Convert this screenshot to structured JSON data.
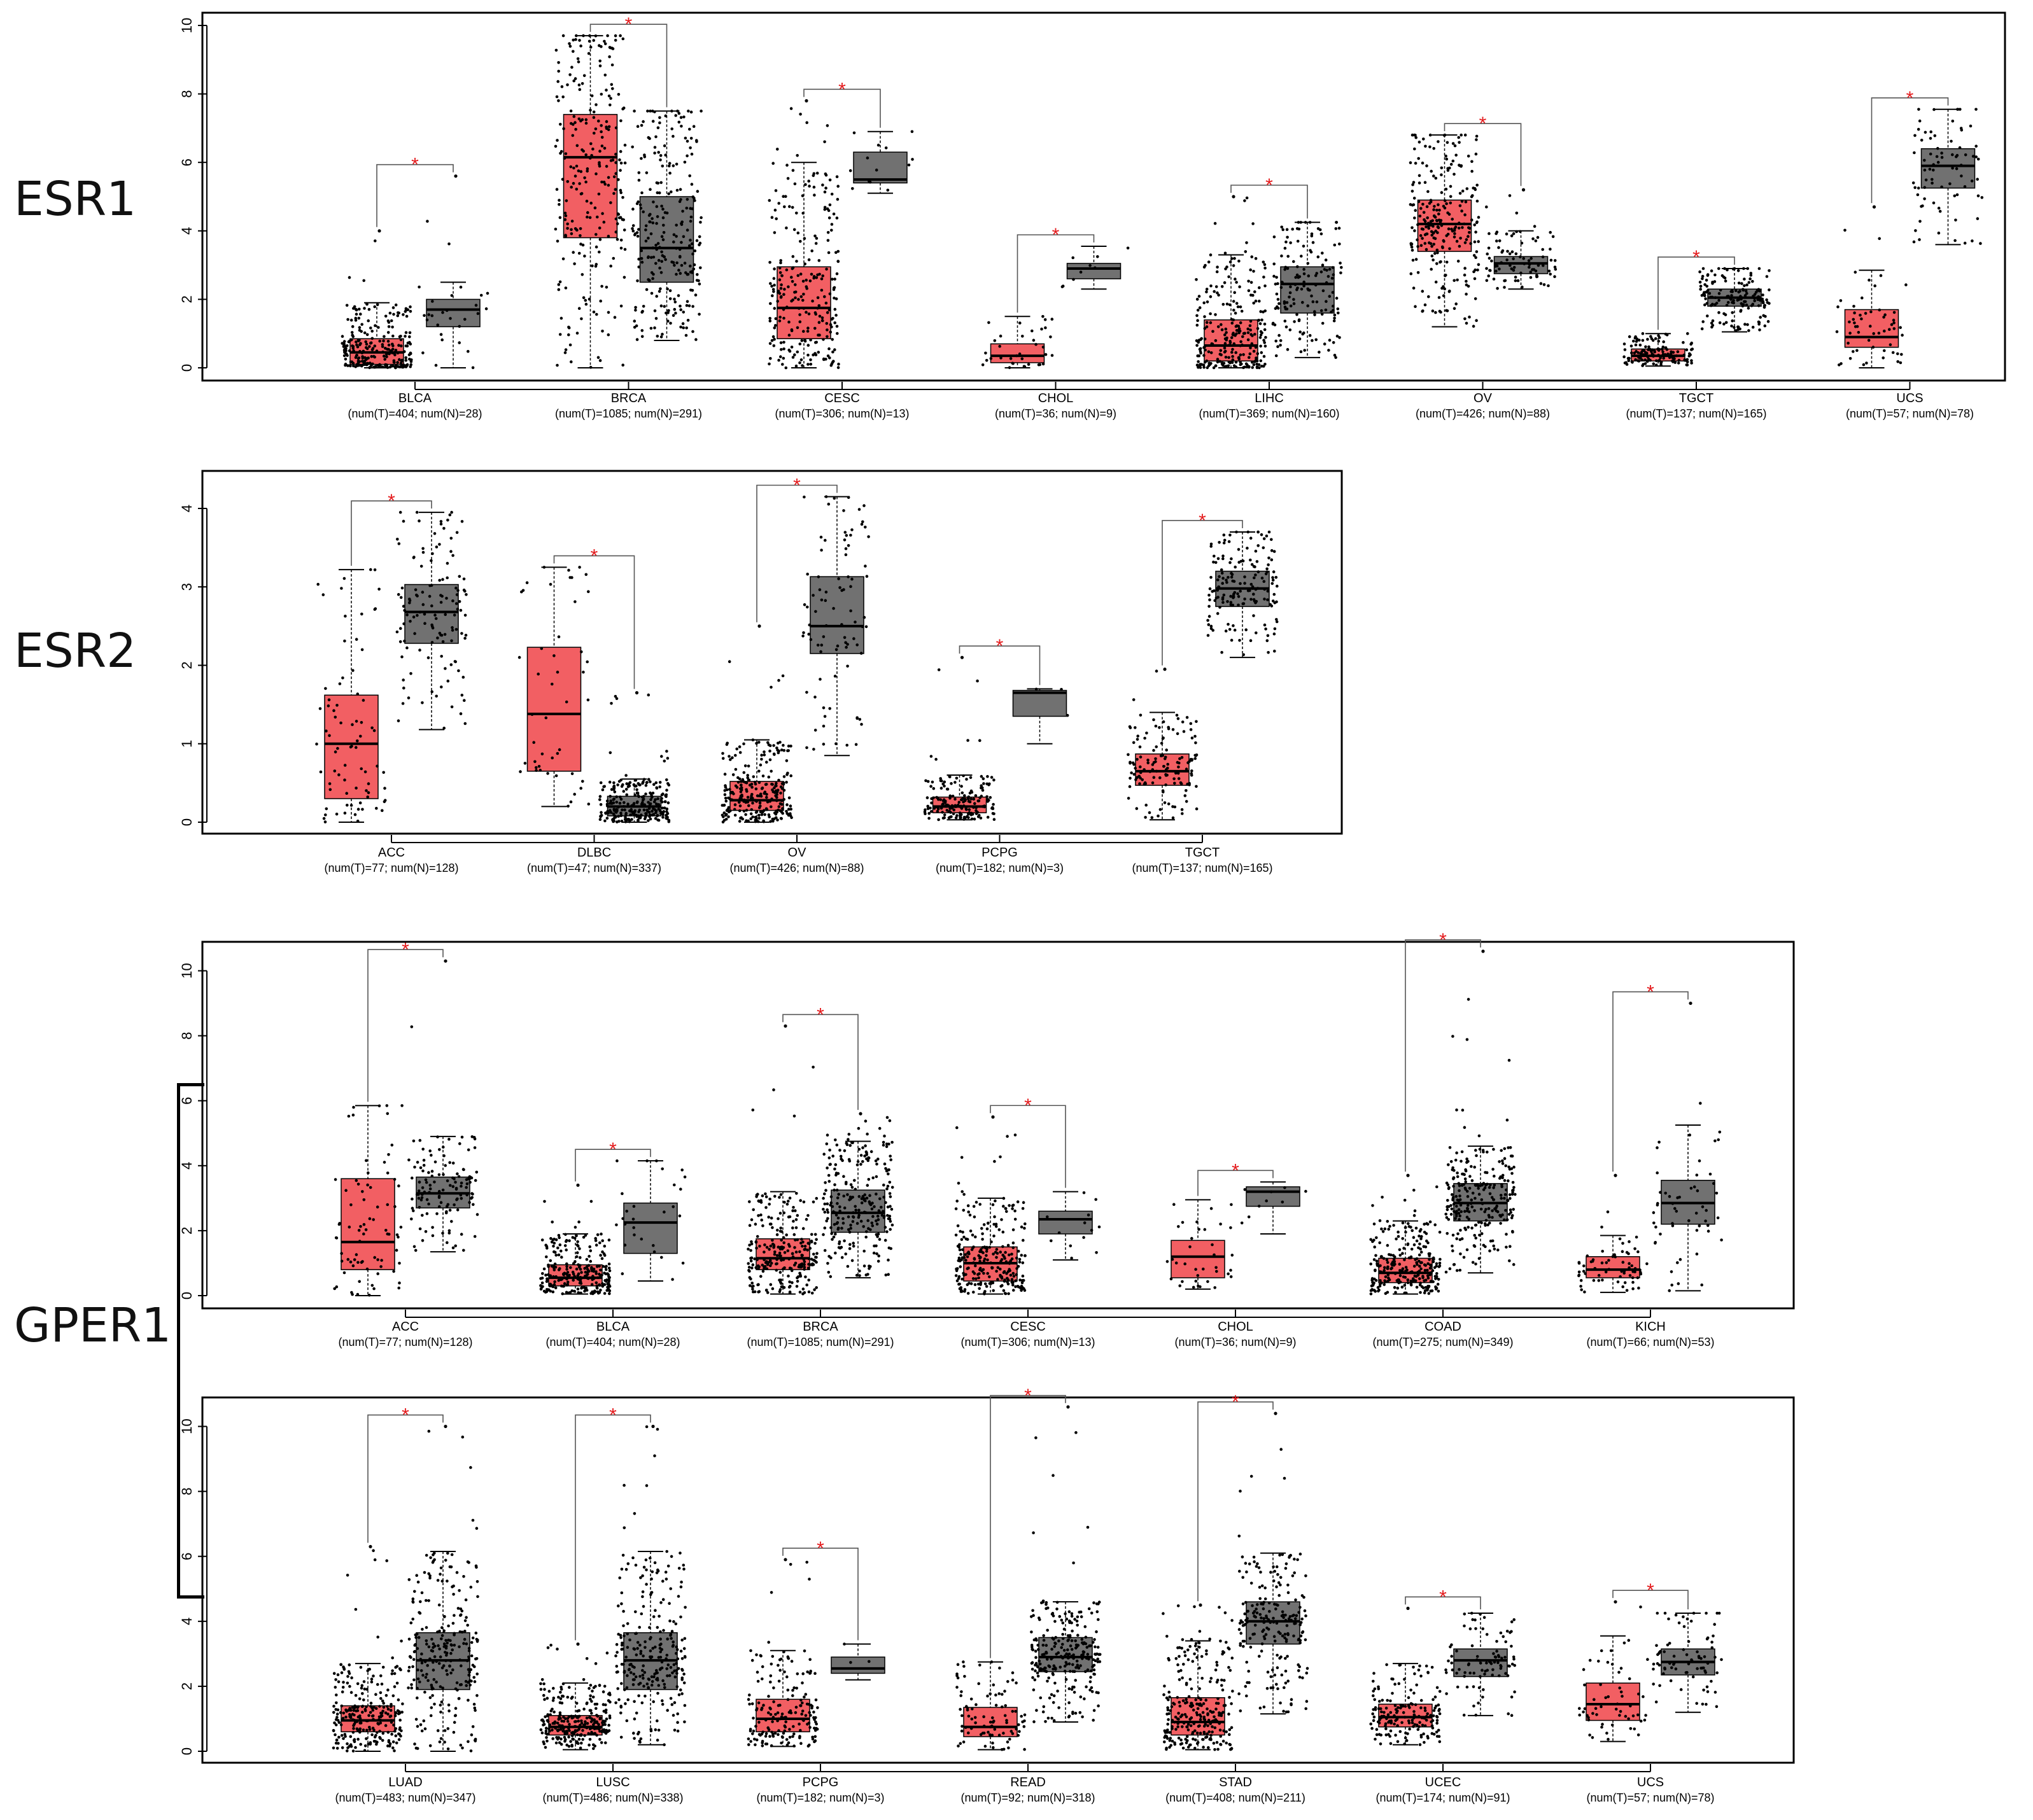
{
  "row_labels": {
    "esr1": "ESR1",
    "esr2": "ESR2",
    "gper1": "GPER1"
  },
  "colors": {
    "tumor": "#f25f63",
    "normal": "#717171",
    "significance": "#e41a1c",
    "points": "#000000"
  },
  "chart_data": [
    {
      "type": "box",
      "gene": "ESR1",
      "ylim": [
        0,
        10
      ],
      "yticks": [
        0,
        2,
        4,
        6,
        8,
        10
      ],
      "yticklabels": [
        "0",
        "2",
        "4",
        "6",
        "8",
        "10"
      ],
      "categories": [
        "BLCA",
        "BRCA",
        "CESC",
        "CHOL",
        "LIHC",
        "OV",
        "TGCT",
        "UCS"
      ],
      "sublabels": [
        "(num(T)=404; num(N)=28)",
        "(num(T)=1085; num(N)=291)",
        "(num(T)=306; num(N)=13)",
        "(num(T)=36; num(N)=9)",
        "(num(T)=369; num(N)=160)",
        "(num(T)=426; num(N)=88)",
        "(num(T)=137; num(N)=165)",
        "(num(T)=57; num(N)=78)"
      ],
      "sig_marks": [
        "*",
        "*",
        "*",
        "*",
        "*",
        "*",
        "*",
        "*"
      ],
      "tumor": [
        {
          "q1": 0.1,
          "med": 0.45,
          "q3": 0.85,
          "wlo": 0,
          "whi": 1.9,
          "max": 4.0,
          "n": 404
        },
        {
          "q1": 3.8,
          "med": 6.15,
          "q3": 7.4,
          "wlo": 0,
          "whi": 9.7,
          "max": 9.7,
          "n": 1085
        },
        {
          "q1": 0.85,
          "med": 1.75,
          "q3": 2.95,
          "wlo": 0,
          "whi": 6.0,
          "max": 7.8,
          "n": 306
        },
        {
          "q1": 0.15,
          "med": 0.35,
          "q3": 0.7,
          "wlo": 0,
          "whi": 1.5,
          "max": 1.5,
          "n": 36
        },
        {
          "q1": 0.2,
          "med": 0.65,
          "q3": 1.4,
          "wlo": 0,
          "whi": 3.3,
          "max": 5.0,
          "n": 369
        },
        {
          "q1": 3.4,
          "med": 4.2,
          "q3": 4.9,
          "wlo": 1.2,
          "whi": 6.8,
          "max": 6.8,
          "n": 426
        },
        {
          "q1": 0.2,
          "med": 0.35,
          "q3": 0.55,
          "wlo": 0.05,
          "whi": 1.0,
          "max": 1.0,
          "n": 137
        },
        {
          "q1": 0.6,
          "med": 0.9,
          "q3": 1.7,
          "wlo": 0,
          "whi": 2.85,
          "max": 4.7,
          "n": 57
        }
      ],
      "normal": [
        {
          "q1": 1.2,
          "med": 1.7,
          "q3": 2.0,
          "wlo": 0,
          "whi": 2.5,
          "max": 5.6,
          "n": 28
        },
        {
          "q1": 2.5,
          "med": 3.5,
          "q3": 5.0,
          "wlo": 0.8,
          "whi": 7.5,
          "max": 7.5,
          "n": 291
        },
        {
          "q1": 5.4,
          "med": 5.5,
          "q3": 6.3,
          "wlo": 5.1,
          "whi": 6.9,
          "max": 6.9,
          "n": 13
        },
        {
          "q1": 2.6,
          "med": 2.9,
          "q3": 3.05,
          "wlo": 2.3,
          "whi": 3.55,
          "max": 3.55,
          "n": 9
        },
        {
          "q1": 1.6,
          "med": 2.45,
          "q3": 2.95,
          "wlo": 0.3,
          "whi": 4.25,
          "max": 4.25,
          "n": 160
        },
        {
          "q1": 2.75,
          "med": 3.05,
          "q3": 3.25,
          "wlo": 2.3,
          "whi": 4.0,
          "max": 5.2,
          "n": 88
        },
        {
          "q1": 1.8,
          "med": 2.05,
          "q3": 2.3,
          "wlo": 1.05,
          "whi": 2.9,
          "max": 2.9,
          "n": 165
        },
        {
          "q1": 5.25,
          "med": 5.9,
          "q3": 6.4,
          "wlo": 3.6,
          "whi": 7.55,
          "max": 7.55,
          "n": 78
        }
      ]
    },
    {
      "type": "box",
      "gene": "ESR2",
      "ylim": [
        0,
        4.3
      ],
      "yticks": [
        0,
        1,
        2,
        3,
        4
      ],
      "yticklabels": [
        "0",
        "1",
        "2",
        "3",
        "4"
      ],
      "categories": [
        "ACC",
        "DLBC",
        "OV",
        "PCPG",
        "TGCT"
      ],
      "sublabels": [
        "(num(T)=77; num(N)=128)",
        "(num(T)=47; num(N)=337)",
        "(num(T)=426; num(N)=88)",
        "(num(T)=182; num(N)=3)",
        "(num(T)=137; num(N)=165)"
      ],
      "sig_marks": [
        "*",
        "*",
        "*",
        "*",
        "*"
      ],
      "tumor": [
        {
          "q1": 0.3,
          "med": 1.0,
          "q3": 1.62,
          "wlo": 0,
          "whi": 3.22,
          "max": 3.22,
          "n": 77
        },
        {
          "q1": 0.65,
          "med": 1.38,
          "q3": 2.23,
          "wlo": 0.2,
          "whi": 3.25,
          "max": 3.25,
          "n": 47
        },
        {
          "q1": 0.15,
          "med": 0.28,
          "q3": 0.52,
          "wlo": 0,
          "whi": 1.05,
          "max": 2.5,
          "n": 426
        },
        {
          "q1": 0.12,
          "med": 0.2,
          "q3": 0.32,
          "wlo": 0.03,
          "whi": 0.6,
          "max": 2.1,
          "n": 182
        },
        {
          "q1": 0.47,
          "med": 0.65,
          "q3": 0.87,
          "wlo": 0.03,
          "whi": 1.4,
          "max": 1.95,
          "n": 137
        }
      ],
      "normal": [
        {
          "q1": 2.28,
          "med": 2.68,
          "q3": 3.03,
          "wlo": 1.18,
          "whi": 3.95,
          "max": 3.95,
          "n": 128
        },
        {
          "q1": 0.08,
          "med": 0.2,
          "q3": 0.33,
          "wlo": 0,
          "whi": 0.55,
          "max": 1.65,
          "n": 337
        },
        {
          "q1": 2.15,
          "med": 2.5,
          "q3": 3.13,
          "wlo": 0.85,
          "whi": 4.15,
          "max": 4.15,
          "n": 88
        },
        {
          "q1": 1.35,
          "med": 1.65,
          "q3": 1.68,
          "wlo": 1.0,
          "whi": 1.7,
          "max": 1.7,
          "n": 3
        },
        {
          "q1": 2.75,
          "med": 2.98,
          "q3": 3.2,
          "wlo": 2.1,
          "whi": 3.7,
          "max": 3.7,
          "n": 165
        }
      ]
    },
    {
      "type": "box",
      "gene": "GPER1",
      "ylim": [
        0,
        10.5
      ],
      "yticks": [
        0,
        2,
        4,
        6,
        8,
        10
      ],
      "yticklabels": [
        "0",
        "2",
        "4",
        "6",
        "8",
        "10"
      ],
      "categories": [
        "ACC",
        "BLCA",
        "BRCA",
        "CESC",
        "CHOL",
        "COAD",
        "KICH"
      ],
      "sublabels": [
        "(num(T)=77; num(N)=128)",
        "(num(T)=404; num(N)=28)",
        "(num(T)=1085; num(N)=291)",
        "(num(T)=306; num(N)=13)",
        "(num(T)=36; num(N)=9)",
        "(num(T)=275; num(N)=349)",
        "(num(T)=66; num(N)=53)"
      ],
      "sig_marks": [
        "*",
        "*",
        "*",
        "*",
        "*",
        "*",
        "*"
      ],
      "tumor": [
        {
          "q1": 0.8,
          "med": 1.65,
          "q3": 3.6,
          "wlo": 0,
          "whi": 5.85,
          "max": 5.85,
          "n": 77
        },
        {
          "q1": 0.3,
          "med": 0.55,
          "q3": 0.95,
          "wlo": 0.05,
          "whi": 1.9,
          "max": 3.4,
          "n": 404
        },
        {
          "q1": 0.8,
          "med": 1.15,
          "q3": 1.75,
          "wlo": 0.05,
          "whi": 3.2,
          "max": 8.3,
          "n": 1085
        },
        {
          "q1": 0.45,
          "med": 1.0,
          "q3": 1.5,
          "wlo": 0.05,
          "whi": 3.0,
          "max": 5.5,
          "n": 306
        },
        {
          "q1": 0.55,
          "med": 1.2,
          "q3": 1.7,
          "wlo": 0.2,
          "whi": 2.95,
          "max": 2.95,
          "n": 36
        },
        {
          "q1": 0.4,
          "med": 0.7,
          "q3": 1.15,
          "wlo": 0.05,
          "whi": 2.3,
          "max": 3.7,
          "n": 275
        },
        {
          "q1": 0.55,
          "med": 0.8,
          "q3": 1.2,
          "wlo": 0.1,
          "whi": 1.85,
          "max": 3.7,
          "n": 66
        }
      ],
      "normal": [
        {
          "q1": 2.7,
          "med": 3.15,
          "q3": 3.65,
          "wlo": 1.35,
          "whi": 4.9,
          "max": 10.3,
          "n": 128
        },
        {
          "q1": 1.3,
          "med": 2.25,
          "q3": 2.85,
          "wlo": 0.45,
          "whi": 4.15,
          "max": 4.15,
          "n": 28
        },
        {
          "q1": 1.95,
          "med": 2.55,
          "q3": 3.25,
          "wlo": 0.55,
          "whi": 4.75,
          "max": 5.6,
          "n": 291
        },
        {
          "q1": 1.9,
          "med": 2.35,
          "q3": 2.6,
          "wlo": 1.1,
          "whi": 3.2,
          "max": 3.2,
          "n": 13
        },
        {
          "q1": 2.75,
          "med": 3.2,
          "q3": 3.35,
          "wlo": 1.9,
          "whi": 3.5,
          "max": 3.5,
          "n": 9
        },
        {
          "q1": 2.3,
          "med": 2.85,
          "q3": 3.45,
          "wlo": 0.7,
          "whi": 4.6,
          "max": 10.6,
          "n": 349
        },
        {
          "q1": 2.2,
          "med": 2.85,
          "q3": 3.55,
          "wlo": 0.15,
          "whi": 5.25,
          "max": 9.0,
          "n": 53
        }
      ]
    },
    {
      "type": "box",
      "gene": "GPER1",
      "ylim": [
        0,
        10.5
      ],
      "yticks": [
        0,
        2,
        4,
        6,
        8,
        10
      ],
      "yticklabels": [
        "0",
        "2",
        "4",
        "6",
        "8",
        "10"
      ],
      "categories": [
        "LUAD",
        "LUSC",
        "PCPG",
        "READ",
        "STAD",
        "UCEC",
        "UCS"
      ],
      "sublabels": [
        "(num(T)=483; num(N)=347)",
        "(num(T)=486; num(N)=338)",
        "(num(T)=182; num(N)=3)",
        "(num(T)=92; num(N)=318)",
        "(num(T)=408; num(N)=211)",
        "(num(T)=174; num(N)=91)",
        "(num(T)=57; num(N)=78)"
      ],
      "sig_marks": [
        "*",
        "*",
        "*",
        "*",
        "*",
        "*",
        "*"
      ],
      "tumor": [
        {
          "q1": 0.6,
          "med": 0.95,
          "q3": 1.4,
          "wlo": 0,
          "whi": 2.7,
          "max": 6.3,
          "n": 483
        },
        {
          "q1": 0.5,
          "med": 0.75,
          "q3": 1.1,
          "wlo": 0.05,
          "whi": 2.1,
          "max": 3.3,
          "n": 486
        },
        {
          "q1": 0.6,
          "med": 1.0,
          "q3": 1.6,
          "wlo": 0.15,
          "whi": 3.1,
          "max": 5.9,
          "n": 182
        },
        {
          "q1": 0.45,
          "med": 0.75,
          "q3": 1.35,
          "wlo": 0.05,
          "whi": 2.75,
          "max": 2.75,
          "n": 92
        },
        {
          "q1": 0.5,
          "med": 0.9,
          "q3": 1.65,
          "wlo": 0.05,
          "whi": 3.4,
          "max": 4.5,
          "n": 408
        },
        {
          "q1": 0.75,
          "med": 1.05,
          "q3": 1.45,
          "wlo": 0.2,
          "whi": 2.7,
          "max": 4.4,
          "n": 174
        },
        {
          "q1": 0.95,
          "med": 1.45,
          "q3": 2.1,
          "wlo": 0.3,
          "whi": 3.55,
          "max": 4.6,
          "n": 57
        }
      ],
      "normal": [
        {
          "q1": 1.9,
          "med": 2.8,
          "q3": 3.65,
          "wlo": 0,
          "whi": 6.15,
          "max": 10.0,
          "n": 347
        },
        {
          "q1": 1.9,
          "med": 2.8,
          "q3": 3.65,
          "wlo": 0.2,
          "whi": 6.15,
          "max": 10.0,
          "n": 338
        },
        {
          "q1": 2.4,
          "med": 2.55,
          "q3": 2.9,
          "wlo": 2.2,
          "whi": 3.3,
          "max": 3.3,
          "n": 3
        },
        {
          "q1": 2.45,
          "med": 2.9,
          "q3": 3.5,
          "wlo": 0.9,
          "whi": 4.6,
          "max": 10.6,
          "n": 318
        },
        {
          "q1": 3.3,
          "med": 4.0,
          "q3": 4.6,
          "wlo": 1.15,
          "whi": 6.1,
          "max": 10.4,
          "n": 211
        },
        {
          "q1": 2.3,
          "med": 2.8,
          "q3": 3.15,
          "wlo": 1.1,
          "whi": 4.25,
          "max": 4.25,
          "n": 91
        },
        {
          "q1": 2.35,
          "med": 2.75,
          "q3": 3.15,
          "wlo": 1.2,
          "whi": 4.25,
          "max": 4.25,
          "n": 78
        }
      ]
    }
  ]
}
